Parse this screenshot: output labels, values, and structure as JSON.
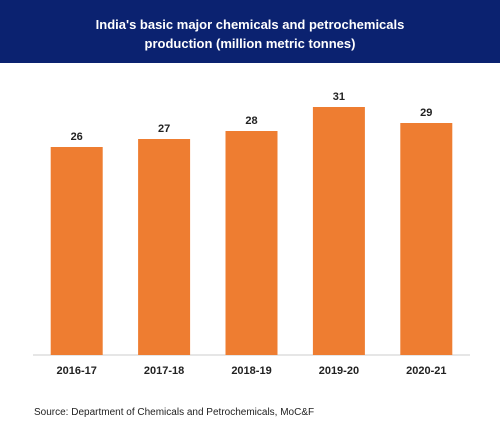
{
  "title": "India's basic major chemicals and petrochemicals production (million metric tonnes)",
  "source": "Source: Department of Chemicals and Petrochemicals, MoC&F",
  "colors": {
    "banner": "#0b2270",
    "bar": "#ee7d31",
    "axis": "#cccccc"
  },
  "chart_data": {
    "type": "bar",
    "title": "India's basic major chemicals and petrochemicals production (million metric tonnes)",
    "categories": [
      "2016-17",
      "2017-18",
      "2018-19",
      "2019-20",
      "2020-21"
    ],
    "values": [
      26,
      27,
      28,
      31,
      29
    ],
    "xlabel": "",
    "ylabel": "",
    "ylim": [
      0,
      35
    ],
    "grid": false,
    "legend": "none",
    "data_labels": true
  }
}
